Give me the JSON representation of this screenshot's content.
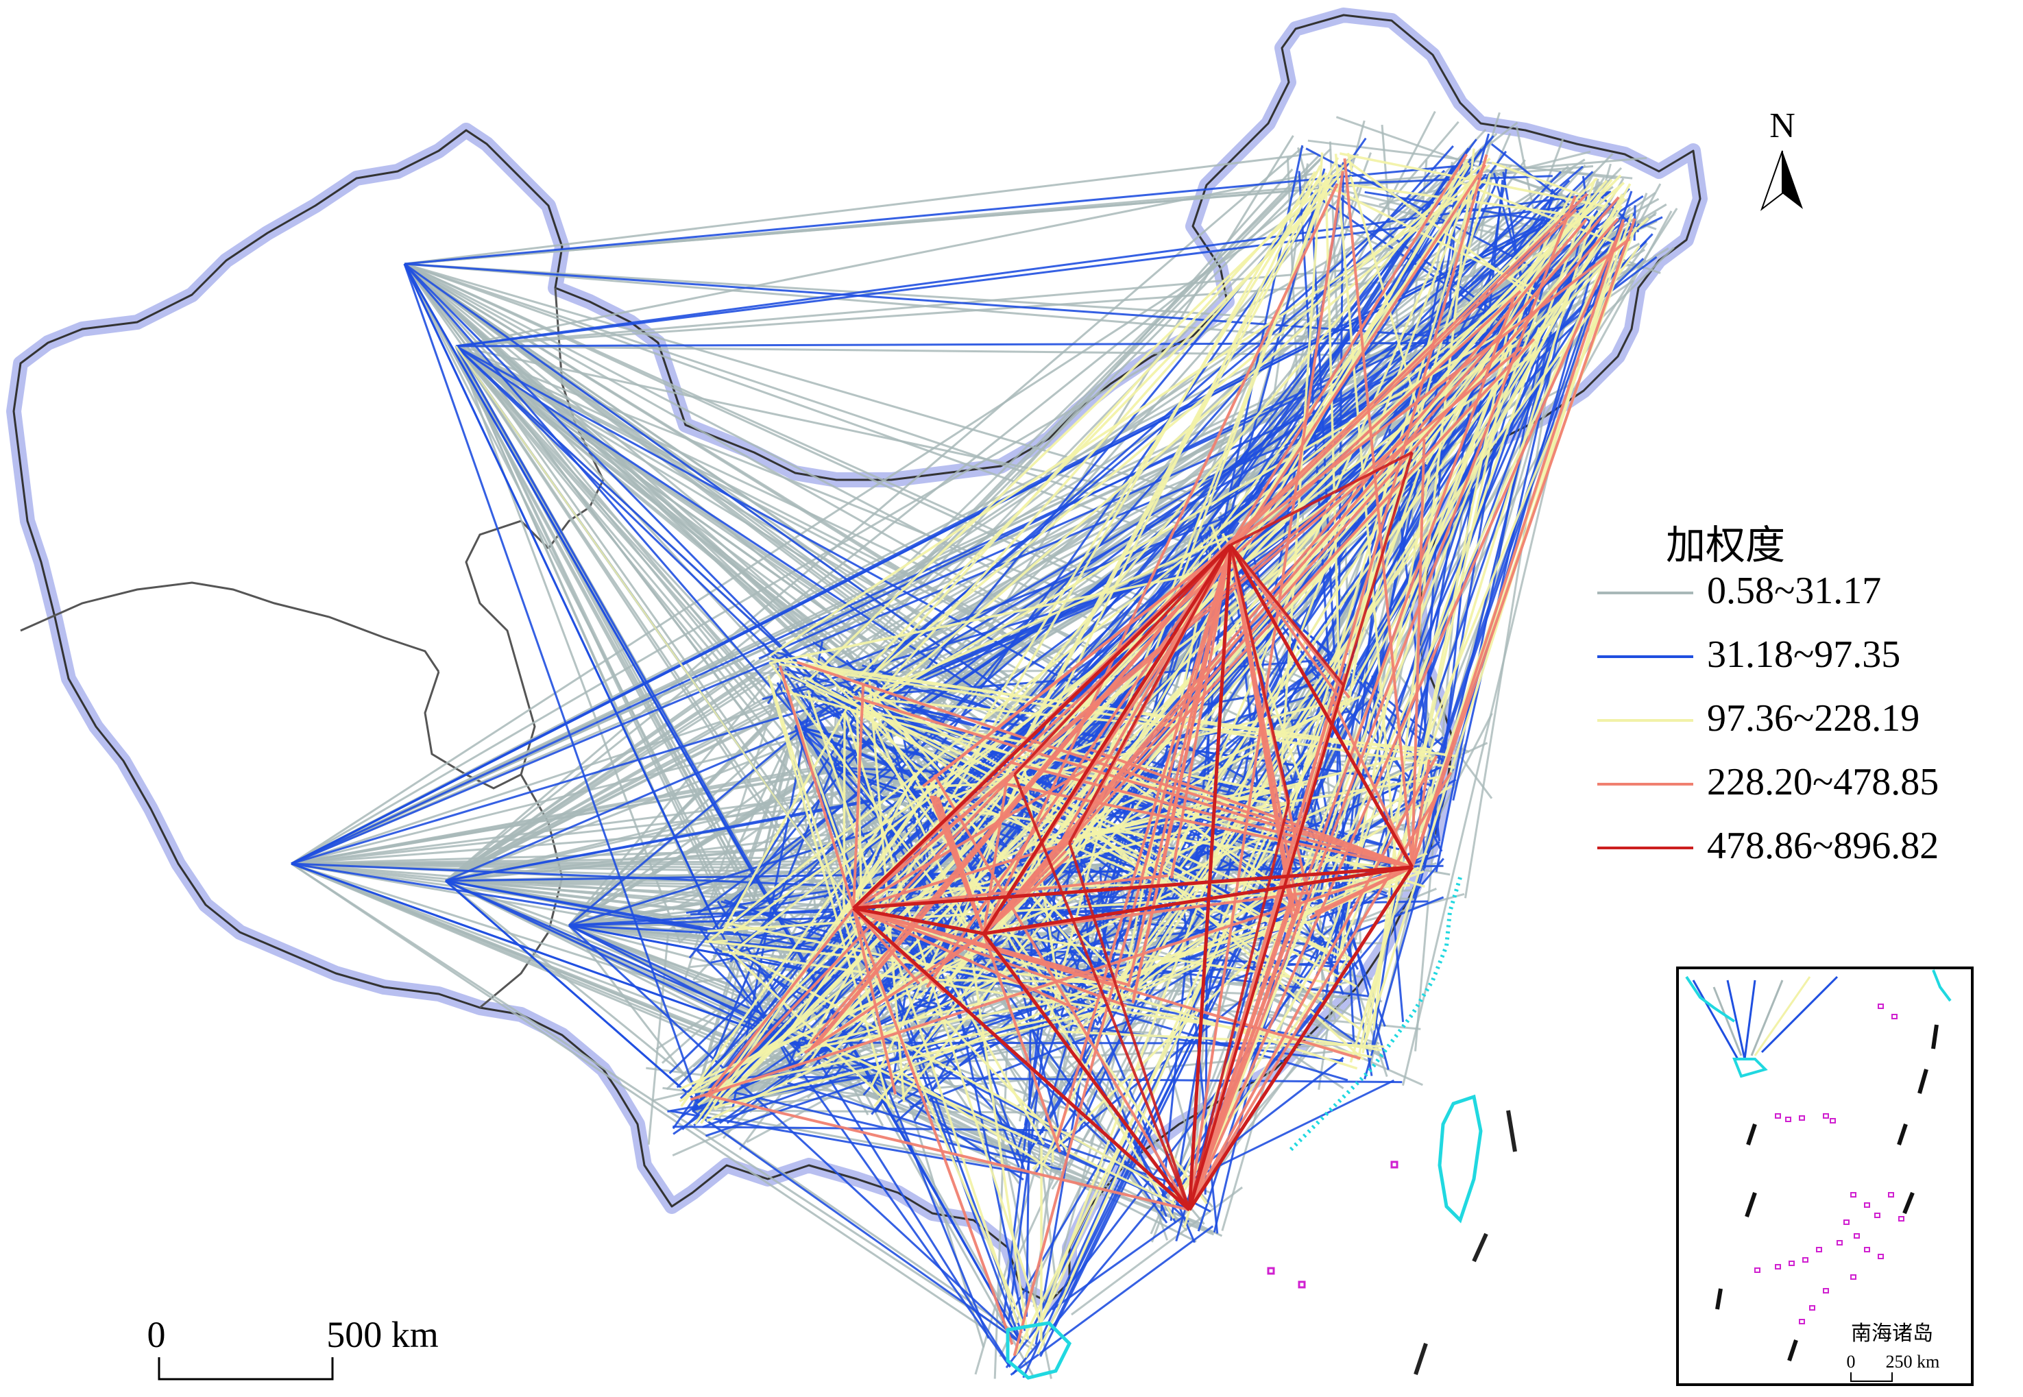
{
  "map": {
    "legend": {
      "title": "加权度",
      "classes": [
        {
          "label": "0.58~31.17",
          "color": "#a8b8b8"
        },
        {
          "label": "31.18~97.35",
          "color": "#1f4fe0"
        },
        {
          "label": "97.36~228.19",
          "color": "#f2f2a8"
        },
        {
          "label": "228.20~478.85",
          "color": "#f08070"
        },
        {
          "label": "478.86~896.82",
          "color": "#cc1e1e"
        }
      ]
    },
    "north_arrow": {
      "label": "N",
      "icon": "north-arrow-icon"
    },
    "scale_bar": {
      "start": "0",
      "end": "500 km"
    },
    "inset": {
      "title": "南海诸岛",
      "scale_start": "0",
      "scale_end": "250 km",
      "island_color": "#d020d0"
    },
    "colors": {
      "boundary_halo": "#b8bff0",
      "province_line": "#555555",
      "coast_cyan": "#20d8e0"
    }
  }
}
